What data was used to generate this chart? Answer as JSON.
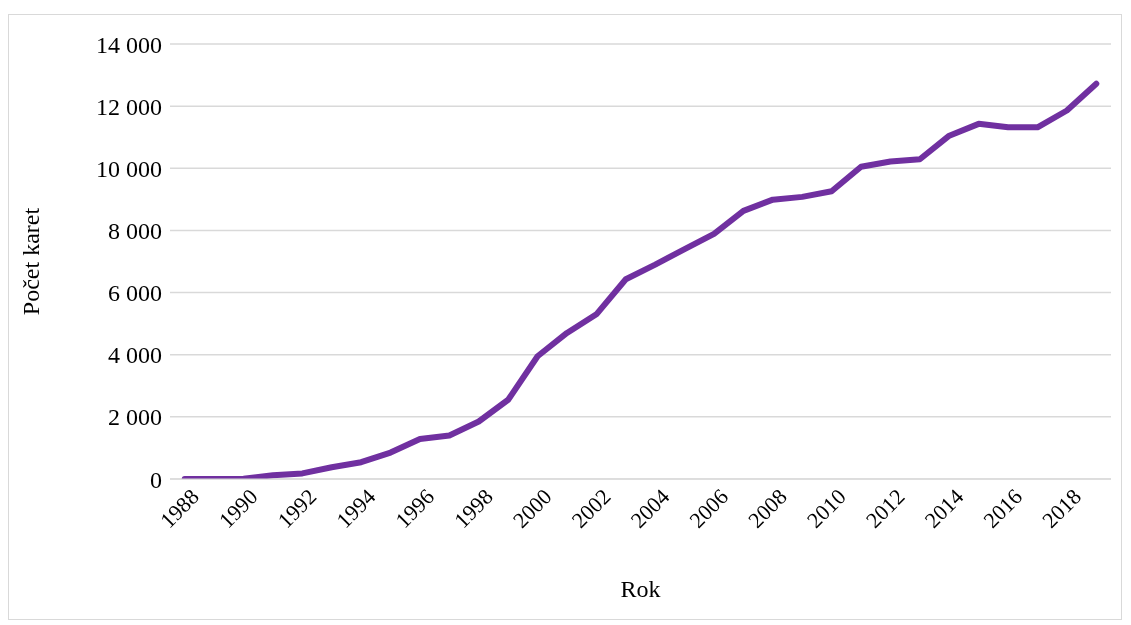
{
  "chart_data": {
    "type": "line",
    "xlabel": "Rok",
    "ylabel": "Počet karet",
    "categories": [
      "1988",
      null,
      "1990",
      null,
      "1992",
      null,
      "1994",
      null,
      "1996",
      null,
      "1998",
      null,
      "2000",
      null,
      "2002",
      null,
      "2004",
      null,
      "2006",
      null,
      "2008",
      null,
      "2010",
      null,
      "2012",
      null,
      "2014",
      null,
      "2016",
      null,
      "2018",
      null
    ],
    "series": [
      {
        "color": "#7030a0",
        "values": [
          0,
          0,
          10,
          120,
          180,
          380,
          540,
          850,
          1290,
          1400,
          1850,
          2550,
          3950,
          4700,
          5300,
          6430,
          6900,
          7400,
          7890,
          8630,
          8990,
          9080,
          9260,
          10050,
          10220,
          10290,
          11050,
          11430,
          11320,
          11320,
          11860,
          12720
        ]
      }
    ],
    "ylim": [
      0,
      14000
    ],
    "yticks": [
      {
        "value": 0,
        "label": "0"
      },
      {
        "value": 2000,
        "label": "2 000"
      },
      {
        "value": 4000,
        "label": "4 000"
      },
      {
        "value": 6000,
        "label": "6 000"
      },
      {
        "value": 8000,
        "label": "8 000"
      },
      {
        "value": 10000,
        "label": "10 000"
      },
      {
        "value": 12000,
        "label": "12 000"
      },
      {
        "value": 14000,
        "label": "14 000"
      }
    ],
    "grid": "y",
    "legend": false,
    "marker": "none",
    "line_style": "solid"
  }
}
